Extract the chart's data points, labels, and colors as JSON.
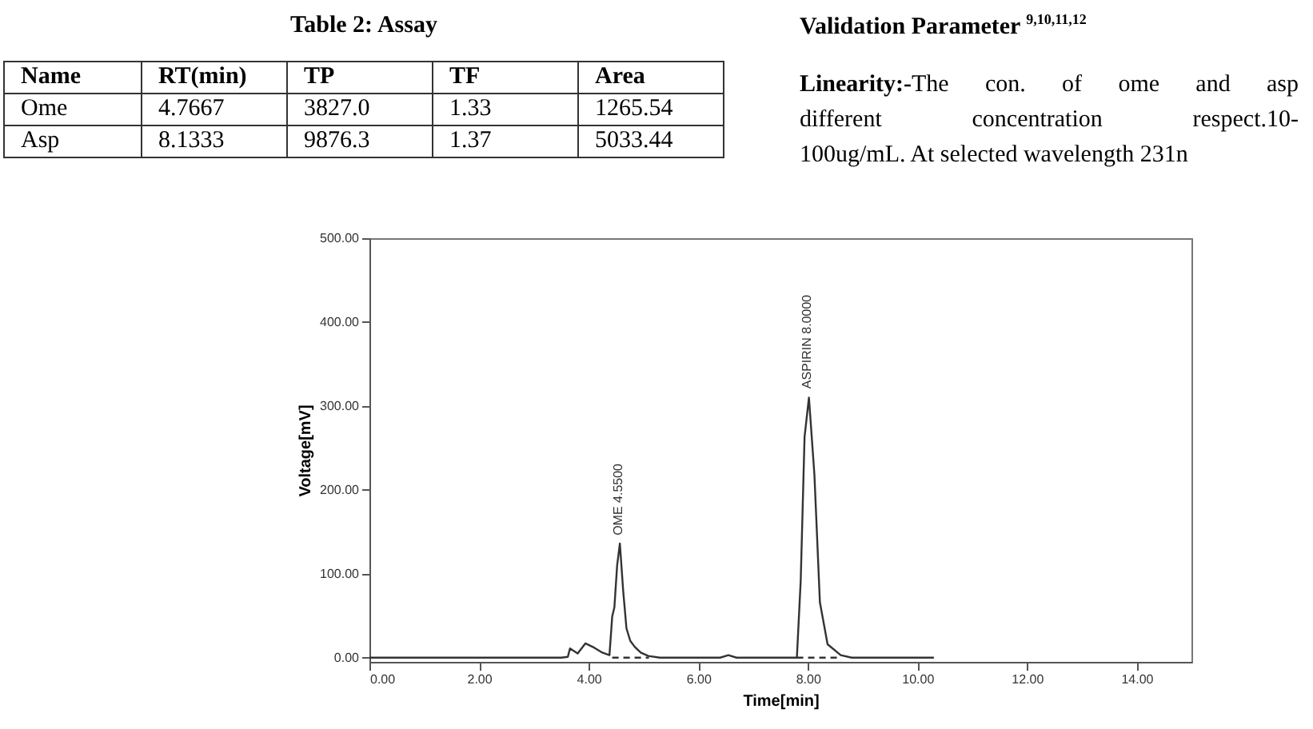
{
  "chart_data": {
    "type": "line",
    "xlabel": "Time[min]",
    "ylabel": "Voltage[mV]",
    "xlim": [
      0,
      15
    ],
    "ylim": [
      -5,
      500
    ],
    "xticks": [
      {
        "value": 0,
        "label": "0.00"
      },
      {
        "value": 2,
        "label": "2.00"
      },
      {
        "value": 4,
        "label": "4.00"
      },
      {
        "value": 6,
        "label": "6.00"
      },
      {
        "value": 8,
        "label": "8.00"
      },
      {
        "value": 10,
        "label": "10.00"
      },
      {
        "value": 12,
        "label": "12.00"
      },
      {
        "value": 14,
        "label": "14.00"
      }
    ],
    "yticks": [
      {
        "value": 0,
        "label": "0.00"
      },
      {
        "value": 100,
        "label": "100.00"
      },
      {
        "value": 200,
        "label": "200.00"
      },
      {
        "value": 300,
        "label": "300.00"
      },
      {
        "value": 400,
        "label": "400.00"
      },
      {
        "value": 500,
        "label": "500.00"
      }
    ],
    "grid": false,
    "series": [
      {
        "color": "#333333",
        "line_style": "solid",
        "x": [
          0,
          1,
          2,
          3,
          3.5,
          3.62,
          3.66,
          3.8,
          3.94,
          4.1,
          4.25,
          4.38,
          4.43,
          4.47,
          4.52,
          4.57,
          4.63,
          4.69,
          4.76,
          4.84,
          4.95,
          5.09,
          5.3,
          6.0,
          6.4,
          6.55,
          6.7,
          7.0,
          7.5,
          7.8,
          7.87,
          7.94,
          8.02,
          8.12,
          8.22,
          8.36,
          8.6,
          8.8,
          9.5,
          10.3
        ],
        "values": [
          0,
          0,
          0,
          0,
          0,
          1,
          11,
          5,
          17,
          12,
          6,
          3,
          49,
          60,
          110,
          136,
          80,
          35,
          20,
          13,
          6,
          2,
          0,
          0,
          0,
          3,
          0,
          0,
          0,
          0,
          92,
          263,
          310,
          218,
          66,
          16,
          3,
          0,
          0,
          0
        ]
      },
      {
        "type": "line",
        "color": "#333333",
        "line_style": "dashed",
        "x": [
          4.43,
          5.1
        ],
        "values": [
          0,
          0
        ]
      },
      {
        "type": "line",
        "color": "#333333",
        "line_style": "dashed",
        "x": [
          7.8,
          8.6
        ],
        "values": [
          0,
          0
        ]
      }
    ],
    "annotations": [
      "Table 2: Assay",
      "Name\tRT(min)\tTP\tTF\tArea",
      "Ome\t4.7667\t3827.0\t1.33\t1265.54",
      "Asp\t8.1333\t9876.3\t1.37\t5033.44",
      "Validation Parameter $^{9,10,11,12}$",
      "Linearity:-The con. of ome and asp",
      "different concentration respect.10-",
      "100ug/mL. At selected wavelength 231n",
      {
        "text": "OME 4.5500",
        "x": 4.55,
        "y": 140
      },
      {
        "text": "ASPIRIN 8.0000",
        "x": 8.0,
        "y": 315
      }
    ]
  }
}
